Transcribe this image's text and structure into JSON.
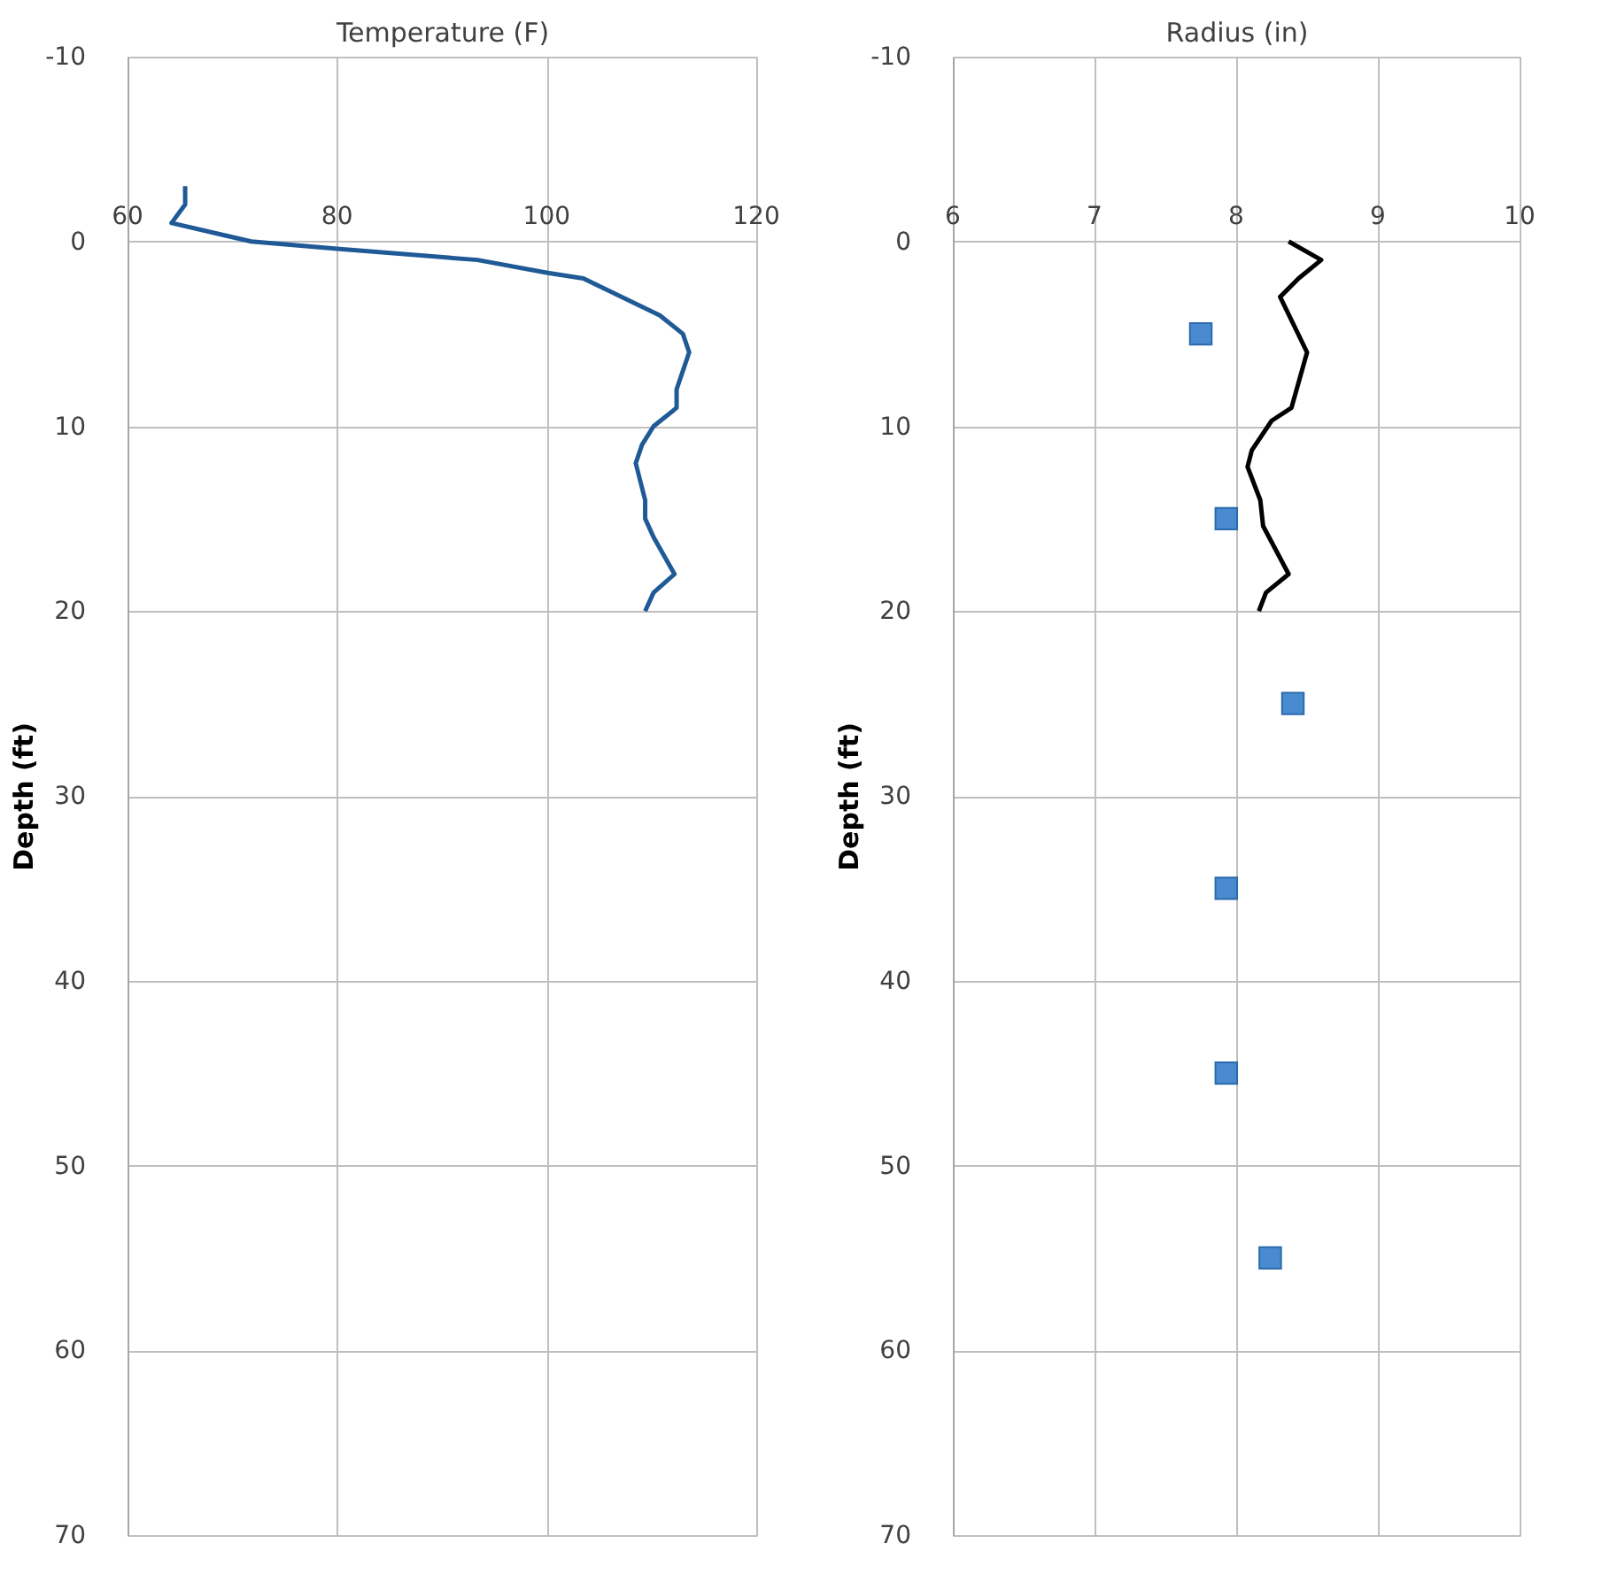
{
  "chart_data": [
    {
      "type": "line",
      "xlabel": "Temperature (F)",
      "ylabel": "Depth (ft)",
      "xlim": [
        60,
        120
      ],
      "xticks": [
        60,
        80,
        100,
        120
      ],
      "ylim": [
        70,
        -10
      ],
      "yticks": [
        -10,
        0,
        10,
        20,
        30,
        40,
        50,
        60,
        70
      ],
      "grid": true,
      "marker": "none",
      "line_style": "solid",
      "series": [
        {
          "color": "#1f5a96",
          "x": [
            65.5,
            65.5,
            64.2,
            71.8,
            80,
            93.4,
            100.1,
            103.5,
            110.8,
            113,
            113.6,
            112.4,
            112.4,
            110.2,
            109.1,
            108.5,
            109.4,
            109.4,
            110.2,
            112.2,
            110.2,
            109.4
          ],
          "values": [
            -3,
            -2,
            -1,
            0,
            0.4,
            1,
            1.7,
            2,
            4,
            5,
            6,
            8,
            9,
            10,
            11,
            12,
            14,
            15,
            16,
            18,
            19,
            20
          ]
        }
      ]
    },
    {
      "type": "line",
      "xlabel": "Radius (in)",
      "ylabel": "Depth (ft)",
      "xlim": [
        6,
        10
      ],
      "xticks": [
        6,
        7,
        8,
        9,
        10
      ],
      "ylim": [
        70,
        -10
      ],
      "yticks": [
        -10,
        0,
        10,
        20,
        30,
        40,
        50,
        60,
        70
      ],
      "grid": true,
      "line_style": "solid",
      "series": [
        {
          "type": "line",
          "marker": "none",
          "color": "#000000",
          "x": [
            8.37,
            8.6,
            8.44,
            8.31,
            8.5,
            8.39,
            8.25,
            8.11,
            8.08,
            8.17,
            8.19,
            8.37,
            8.21,
            8.16
          ],
          "values": [
            0,
            1,
            2,
            3,
            6,
            9,
            9.7,
            11.3,
            12.2,
            14,
            15.4,
            18,
            19,
            20
          ]
        },
        {
          "type": "scatter",
          "marker": "square",
          "color": "#4a8bd0",
          "x": [
            7.75,
            7.93,
            8.4,
            7.93,
            7.93,
            8.24
          ],
          "values": [
            5,
            15,
            25,
            35,
            45,
            55
          ]
        }
      ]
    }
  ]
}
